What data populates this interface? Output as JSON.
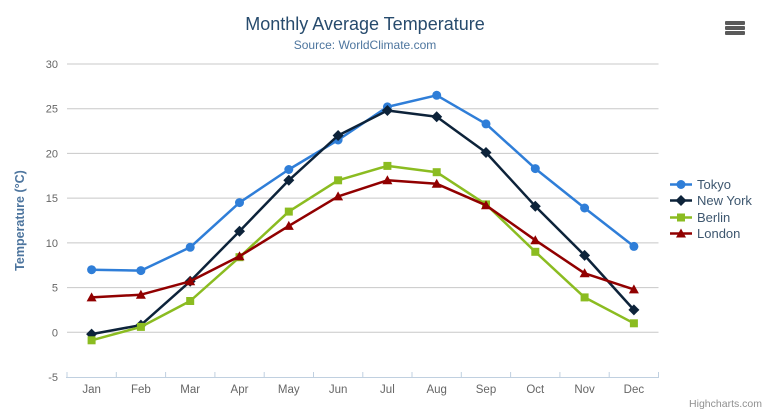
{
  "header": {
    "title": "Monthly Average Temperature",
    "subtitle": "Source: WorldClimate.com"
  },
  "toolbar": {
    "context_menu_icon": "hamburger-menu-icon"
  },
  "credits": {
    "text": "Highcharts.com"
  },
  "chart_data": {
    "type": "line",
    "title": "Monthly Average Temperature",
    "subtitle": "Source: WorldClimate.com",
    "categories": [
      "Jan",
      "Feb",
      "Mar",
      "Apr",
      "May",
      "Jun",
      "Jul",
      "Aug",
      "Sep",
      "Oct",
      "Nov",
      "Dec"
    ],
    "xlabel": "",
    "ylabel": "Temperature (°C)",
    "ylim": [
      -5,
      30
    ],
    "y_tick_interval": 5,
    "grid": true,
    "legend_position": "right",
    "series": [
      {
        "name": "Tokyo",
        "color": "#2f7ed8",
        "marker": "circle",
        "values": [
          7.0,
          6.9,
          9.5,
          14.5,
          18.2,
          21.5,
          25.2,
          26.5,
          23.3,
          18.3,
          13.9,
          9.6
        ]
      },
      {
        "name": "New York",
        "color": "#0d233a",
        "marker": "diamond",
        "values": [
          -0.2,
          0.8,
          5.7,
          11.3,
          17.0,
          22.0,
          24.8,
          24.1,
          20.1,
          14.1,
          8.6,
          2.5
        ]
      },
      {
        "name": "Berlin",
        "color": "#8bbc21",
        "marker": "square",
        "values": [
          -0.9,
          0.6,
          3.5,
          8.4,
          13.5,
          17.0,
          18.6,
          17.9,
          14.3,
          9.0,
          3.9,
          1.0
        ]
      },
      {
        "name": "London",
        "color": "#910000",
        "marker": "triangle",
        "values": [
          3.9,
          4.2,
          5.7,
          8.5,
          11.9,
          15.2,
          17.0,
          16.6,
          14.2,
          10.3,
          6.6,
          4.8
        ]
      }
    ],
    "colors": {
      "grid": "#C8C8C8",
      "axis_line": "#C0D0E0",
      "tick_label": "#666666",
      "axis_title": "#4d759e",
      "title": "#274b6d",
      "subtitle": "#4d759e",
      "legend_text": "#3E576F"
    }
  }
}
